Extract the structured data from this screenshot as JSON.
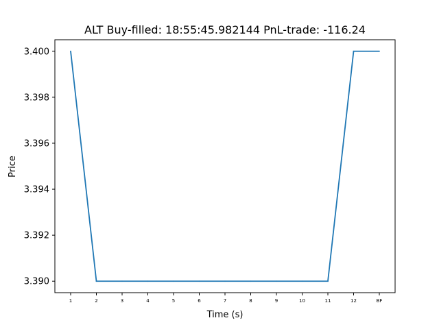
{
  "chart_data": {
    "type": "line",
    "title": "ALT  Buy-filled:  18:55:45.982144  PnL-trade:  -116.24",
    "xlabel": "Time (s)",
    "ylabel": "Price",
    "categories": [
      "1",
      "2",
      "3",
      "4",
      "5",
      "6",
      "7",
      "8",
      "9",
      "10",
      "11",
      "12",
      "BF"
    ],
    "series": [
      {
        "values": [
          3.4,
          3.39,
          3.39,
          3.39,
          3.39,
          3.39,
          3.39,
          3.39,
          3.39,
          3.39,
          3.39,
          3.4,
          3.4
        ],
        "color": "#1f77b4"
      }
    ],
    "yticks": [
      3.39,
      3.392,
      3.394,
      3.396,
      3.398,
      3.4
    ],
    "ytick_labels": [
      "3.390",
      "3.392",
      "3.394",
      "3.396",
      "3.398",
      "3.400"
    ],
    "ylim": [
      3.3895,
      3.4005
    ],
    "grid": false,
    "legend": "none"
  }
}
